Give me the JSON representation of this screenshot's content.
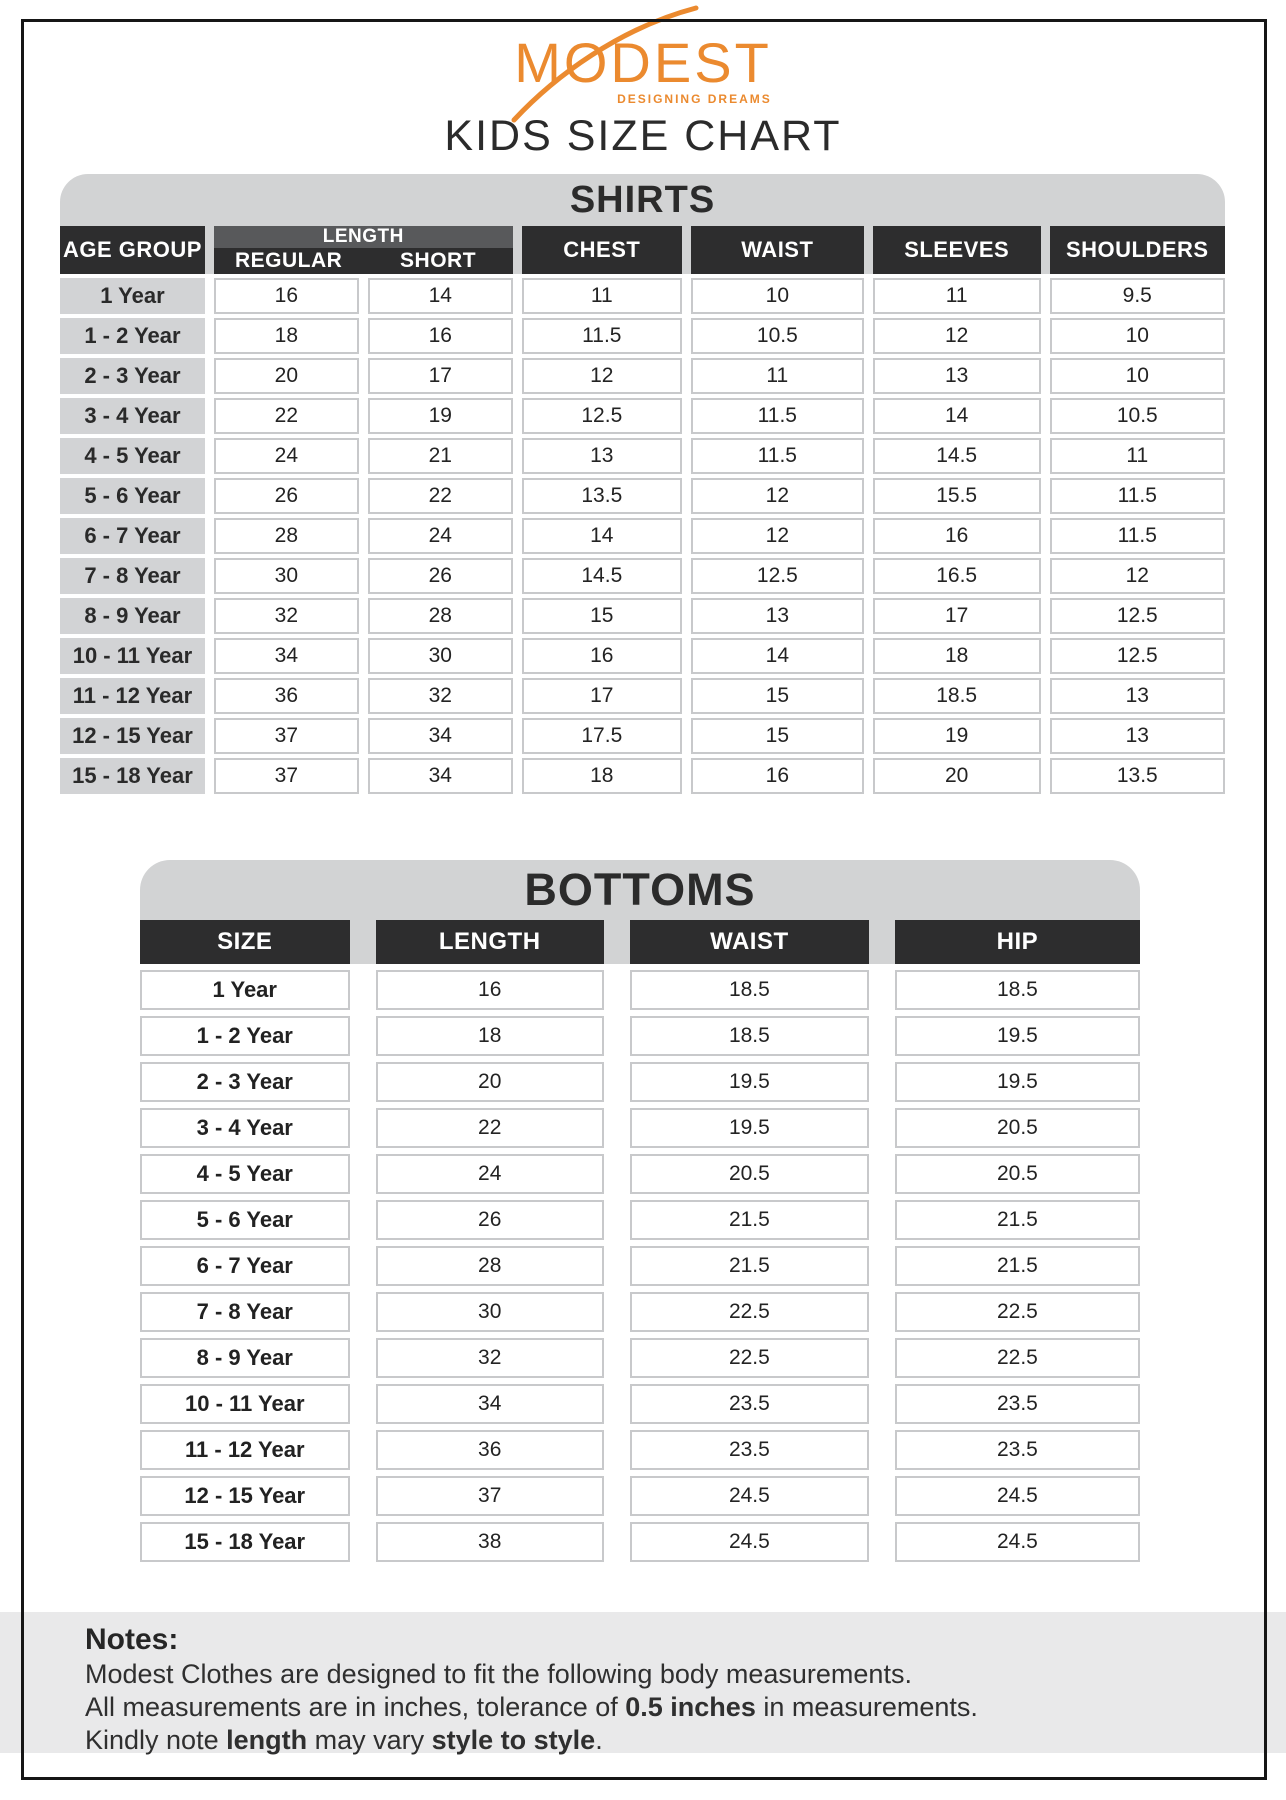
{
  "brand": {
    "name": "MODEST",
    "tagline": "DESIGNING DREAMS",
    "accent_color": "#EB8A2F"
  },
  "title": "KIDS SIZE CHART",
  "colors": {
    "accent_orange": "#EB8A2F",
    "header_dark": "#2D2D2E",
    "header_mid_gray": "#58595B",
    "banner_gray": "#D2D3D4",
    "age_cell_gray": "#D2D3D5",
    "cell_border_gray": "#C8C9CB",
    "notes_band_gray": "#E9E9EA",
    "text_dark": "#2B2B2B"
  },
  "shirts": {
    "section_title": "SHIRTS",
    "headers": {
      "age_group": "AGE GROUP",
      "length": "LENGTH",
      "regular": "REGULAR",
      "short": "SHORT",
      "chest": "CHEST",
      "waist": "WAIST",
      "sleeves": "SLEEVES",
      "shoulders": "SHOULDERS"
    },
    "rows": [
      {
        "age": "1 Year",
        "regular": "16",
        "short": "14",
        "chest": "11",
        "waist": "10",
        "sleeves": "11",
        "shoulders": "9.5"
      },
      {
        "age": "1 - 2 Year",
        "regular": "18",
        "short": "16",
        "chest": "11.5",
        "waist": "10.5",
        "sleeves": "12",
        "shoulders": "10"
      },
      {
        "age": "2 - 3 Year",
        "regular": "20",
        "short": "17",
        "chest": "12",
        "waist": "11",
        "sleeves": "13",
        "shoulders": "10"
      },
      {
        "age": "3 - 4 Year",
        "regular": "22",
        "short": "19",
        "chest": "12.5",
        "waist": "11.5",
        "sleeves": "14",
        "shoulders": "10.5"
      },
      {
        "age": "4 - 5 Year",
        "regular": "24",
        "short": "21",
        "chest": "13",
        "waist": "11.5",
        "sleeves": "14.5",
        "shoulders": "11"
      },
      {
        "age": "5 - 6 Year",
        "regular": "26",
        "short": "22",
        "chest": "13.5",
        "waist": "12",
        "sleeves": "15.5",
        "shoulders": "11.5"
      },
      {
        "age": "6 - 7 Year",
        "regular": "28",
        "short": "24",
        "chest": "14",
        "waist": "12",
        "sleeves": "16",
        "shoulders": "11.5"
      },
      {
        "age": "7 - 8 Year",
        "regular": "30",
        "short": "26",
        "chest": "14.5",
        "waist": "12.5",
        "sleeves": "16.5",
        "shoulders": "12"
      },
      {
        "age": "8 - 9 Year",
        "regular": "32",
        "short": "28",
        "chest": "15",
        "waist": "13",
        "sleeves": "17",
        "shoulders": "12.5"
      },
      {
        "age": "10 - 11 Year",
        "regular": "34",
        "short": "30",
        "chest": "16",
        "waist": "14",
        "sleeves": "18",
        "shoulders": "12.5"
      },
      {
        "age": "11 - 12 Year",
        "regular": "36",
        "short": "32",
        "chest": "17",
        "waist": "15",
        "sleeves": "18.5",
        "shoulders": "13"
      },
      {
        "age": "12 - 15 Year",
        "regular": "37",
        "short": "34",
        "chest": "17.5",
        "waist": "15",
        "sleeves": "19",
        "shoulders": "13"
      },
      {
        "age": "15 - 18 Year",
        "regular": "37",
        "short": "34",
        "chest": "18",
        "waist": "16",
        "sleeves": "20",
        "shoulders": "13.5"
      }
    ]
  },
  "bottoms": {
    "section_title": "BOTTOMS",
    "headers": {
      "size": "SIZE",
      "length": "LENGTH",
      "waist": "WAIST",
      "hip": "HIP"
    },
    "rows": [
      {
        "size": "1 Year",
        "length": "16",
        "waist": "18.5",
        "hip": "18.5"
      },
      {
        "size": "1 - 2 Year",
        "length": "18",
        "waist": "18.5",
        "hip": "19.5"
      },
      {
        "size": "2 - 3 Year",
        "length": "20",
        "waist": "19.5",
        "hip": "19.5"
      },
      {
        "size": "3 - 4 Year",
        "length": "22",
        "waist": "19.5",
        "hip": "20.5"
      },
      {
        "size": "4 - 5 Year",
        "length": "24",
        "waist": "20.5",
        "hip": "20.5"
      },
      {
        "size": "5 - 6 Year",
        "length": "26",
        "waist": "21.5",
        "hip": "21.5"
      },
      {
        "size": "6 - 7 Year",
        "length": "28",
        "waist": "21.5",
        "hip": "21.5"
      },
      {
        "size": "7 - 8 Year",
        "length": "30",
        "waist": "22.5",
        "hip": "22.5"
      },
      {
        "size": "8 - 9 Year",
        "length": "32",
        "waist": "22.5",
        "hip": "22.5"
      },
      {
        "size": "10 - 11 Year",
        "length": "34",
        "waist": "23.5",
        "hip": "23.5"
      },
      {
        "size": "11 - 12 Year",
        "length": "36",
        "waist": "23.5",
        "hip": "23.5"
      },
      {
        "size": "12 - 15 Year",
        "length": "37",
        "waist": "24.5",
        "hip": "24.5"
      },
      {
        "size": "15 - 18 Year",
        "length": "38",
        "waist": "24.5",
        "hip": "24.5"
      }
    ]
  },
  "notes": {
    "title": "Notes:",
    "lines": [
      [
        {
          "t": "Modest Clothes are designed to fit the following body measurements.",
          "b": false
        }
      ],
      [
        {
          "t": "All measurements are in inches, tolerance of ",
          "b": false
        },
        {
          "t": "0.5 inches",
          "b": true
        },
        {
          "t": " in measurements.",
          "b": false
        }
      ],
      [
        {
          "t": "Kindly note ",
          "b": false
        },
        {
          "t": "length",
          "b": true
        },
        {
          "t": " may vary ",
          "b": false
        },
        {
          "t": "style to style",
          "b": true
        },
        {
          "t": ".",
          "b": false
        }
      ]
    ]
  }
}
